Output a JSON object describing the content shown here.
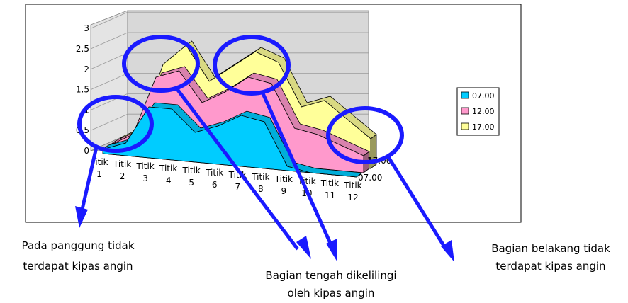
{
  "chart_data": {
    "type": "area",
    "style": "3d-stacked-area",
    "categories": [
      "Titik 1",
      "Titik 2",
      "Titik 3",
      "Titik 4",
      "Titik 5",
      "Titik 6",
      "Titik 7",
      "Titik 8",
      "Titik 9",
      "Titik 10",
      "Titik 11",
      "Titik 12"
    ],
    "series": [
      {
        "name": "07.00",
        "color": "#00ccff",
        "values": [
          0.1,
          0.3,
          1.2,
          1.2,
          0.7,
          0.9,
          1.2,
          1.1,
          0.1,
          0.0,
          0.0,
          0.0
        ]
      },
      {
        "name": "12.00",
        "color": "#ff99cc",
        "values": [
          0.0,
          0.1,
          0.6,
          0.8,
          0.6,
          0.7,
          0.8,
          0.8,
          0.8,
          0.8,
          0.6,
          0.4
        ]
      },
      {
        "name": "17.00",
        "color": "#ffff99",
        "values": [
          0.0,
          0.0,
          0.2,
          0.5,
          0.4,
          0.5,
          0.5,
          0.4,
          0.4,
          0.7,
          0.5,
          0.3
        ]
      }
    ],
    "depth_labels": [
      "07.00",
      "17.00"
    ],
    "ylim": [
      0,
      3
    ],
    "yticks": [
      "0",
      "0.5",
      "1",
      "1.5",
      "2",
      "2.5",
      "3"
    ],
    "grid": true,
    "legend_position": "right"
  },
  "annotations": {
    "left": [
      "Pada panggung tidak",
      "terdapat kipas angin"
    ],
    "middle": [
      "Bagian tengah dikelilingi",
      "oleh kipas angin"
    ],
    "right": [
      "Bagian belakang tidak",
      "terdapat kipas angin"
    ]
  },
  "colors": {
    "highlight": "#0000ff",
    "wall": "#c0c0c0"
  }
}
